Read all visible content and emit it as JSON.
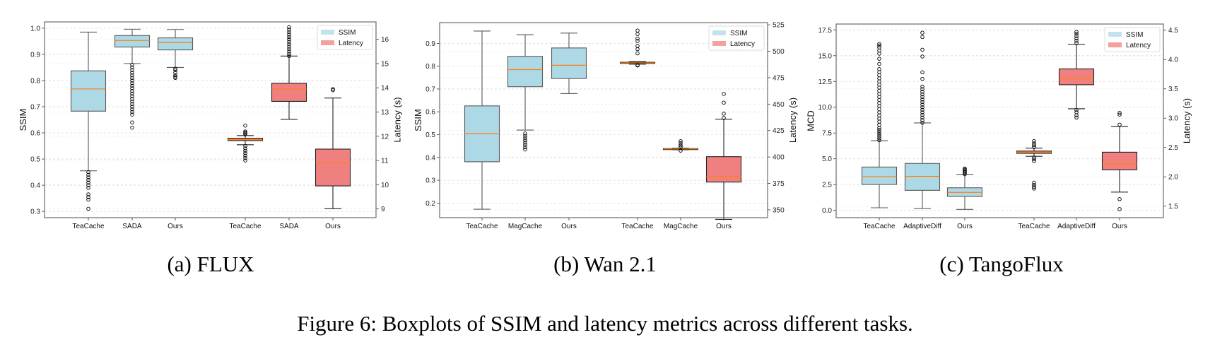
{
  "colors": {
    "ssim_box": "#add8e6",
    "latency_box": "#f08080",
    "median": "#ff7f0e",
    "grid": "#d9d9d9"
  },
  "legend": {
    "placement": "top-right",
    "entries": [
      "SSIM",
      "Latency"
    ]
  },
  "subcaptions": [
    "(a) FLUX",
    "(b) Wan 2.1",
    "(c) TangoFlux"
  ],
  "figure_caption": "Figure 6: Boxplots of SSIM and latency metrics across different tasks.",
  "chart_data": [
    {
      "type": "boxplot",
      "categories": [
        "TeaCache",
        "SADA",
        "Ours",
        "TeaCache",
        "SADA",
        "Ours"
      ],
      "ylabel": "SSIM",
      "y2label": "Latency (s)",
      "ylim": [
        0.276,
        1.024
      ],
      "y2lim": [
        8.64,
        16.72
      ],
      "yticks": [
        "0.3",
        "0.4",
        "0.5",
        "0.6",
        "0.7",
        "0.8",
        "0.9",
        "1.0"
      ],
      "y2ticks": [
        "9",
        "10",
        "11",
        "12",
        "13",
        "14",
        "15",
        "16"
      ],
      "grid": true,
      "left_series": [
        {
          "whislo": 0.455,
          "q1": 0.683,
          "med": 0.768,
          "q3": 0.837,
          "whishi": 0.985,
          "fliers": [
            0.31,
            0.345,
            0.355,
            0.365,
            0.39,
            0.4,
            0.41,
            0.42,
            0.43,
            0.44,
            0.45
          ]
        },
        {
          "whislo": 0.865,
          "q1": 0.928,
          "med": 0.953,
          "q3": 0.972,
          "whishi": 0.996,
          "fliers": [
            0.62,
            0.64,
            0.67,
            0.68,
            0.69,
            0.7,
            0.71,
            0.72,
            0.73,
            0.74,
            0.75,
            0.76,
            0.77,
            0.78,
            0.79,
            0.8,
            0.81,
            0.82,
            0.83,
            0.84,
            0.85,
            0.86
          ]
        },
        {
          "whislo": 0.85,
          "q1": 0.917,
          "med": 0.945,
          "q3": 0.963,
          "whishi": 0.995,
          "fliers": [
            0.81,
            0.815,
            0.82,
            0.83,
            0.84,
            0.845
          ]
        }
      ],
      "right_series": [
        {
          "whislo": 11.65,
          "q1": 11.82,
          "med": 11.86,
          "q3": 11.92,
          "whishi": 12.03,
          "fliers": [
            11.0,
            11.1,
            11.2,
            11.3,
            11.4,
            11.5,
            11.6,
            12.08,
            12.12,
            12.16,
            12.2,
            12.44
          ]
        },
        {
          "whislo": 12.7,
          "q1": 13.44,
          "med": 13.95,
          "q3": 14.19,
          "whishi": 15.31,
          "fliers": [
            15.31,
            15.4,
            15.5,
            15.6,
            15.7,
            15.8,
            15.9,
            16.0,
            16.1,
            16.2,
            16.3,
            16.4,
            16.5
          ]
        },
        {
          "whislo": 9.01,
          "q1": 9.95,
          "med": 10.91,
          "q3": 11.47,
          "whishi": 13.58,
          "fliers": [
            13.9,
            13.95
          ]
        }
      ]
    },
    {
      "type": "boxplot",
      "categories": [
        "TeaCache",
        "MagCache",
        "Ours",
        "TeaCache",
        "MagCache",
        "Ours"
      ],
      "ylabel": "SSIM",
      "y2label": "Latency (s)",
      "ylim": [
        0.136,
        0.991
      ],
      "y2lim": [
        342.6,
        527.1
      ],
      "yticks": [
        "0.2",
        "0.3",
        "0.4",
        "0.5",
        "0.6",
        "0.7",
        "0.8",
        "0.9"
      ],
      "y2ticks": [
        "350",
        "375",
        "400",
        "425",
        "450",
        "475",
        "500",
        "525"
      ],
      "grid": true,
      "left_series": [
        {
          "whislo": 0.173,
          "q1": 0.381,
          "med": 0.505,
          "q3": 0.626,
          "whishi": 0.954,
          "fliers": []
        },
        {
          "whislo": 0.52,
          "q1": 0.71,
          "med": 0.785,
          "q3": 0.843,
          "whishi": 0.938,
          "fliers": [
            0.435,
            0.445,
            0.455,
            0.465,
            0.475,
            0.485,
            0.495,
            0.505
          ]
        },
        {
          "whislo": 0.68,
          "q1": 0.746,
          "med": 0.804,
          "q3": 0.88,
          "whishi": 0.945,
          "fliers": []
        }
      ],
      "right_series": [
        {
          "whislo": 487.8,
          "q1": 488.5,
          "med": 489.0,
          "q3": 489.6,
          "whishi": 490.2,
          "fliers": [
            486.5,
            487.0,
            498,
            502,
            505,
            509.7,
            512,
            516.3,
            519.6
          ]
        },
        {
          "whislo": 406.9,
          "q1": 407.2,
          "med": 407.6,
          "q3": 408.0,
          "whishi": 408.3,
          "fliers": [
            406.0,
            409.5,
            411,
            413,
            415
          ]
        },
        {
          "whislo": 341,
          "q1": 376.3,
          "med": 381.5,
          "q3": 400.3,
          "whishi": 435.8,
          "fliers": [
            437,
            441,
            451.4,
            459.6
          ]
        }
      ]
    },
    {
      "type": "boxplot",
      "categories": [
        "TeaCache",
        "AdaptiveDiff",
        "Ours",
        "TeaCache",
        "AdaptiveDiff",
        "Ours"
      ],
      "ylabel": "MCD",
      "y2label": "Latency (s)",
      "ylim": [
        -0.71,
        18.07
      ],
      "y2lim": [
        1.304,
        4.605
      ],
      "yticks": [
        "0.0",
        "2.5",
        "5.0",
        "7.5",
        "10.0",
        "12.5",
        "15.0",
        "17.5"
      ],
      "y2ticks": [
        "1.5",
        "2.0",
        "2.5",
        "3.0",
        "3.5",
        "4.0",
        "4.5"
      ],
      "grid": true,
      "left_series": [
        {
          "whislo": 0.25,
          "q1": 2.51,
          "med": 3.27,
          "q3": 4.2,
          "whishi": 6.76,
          "fliers": [
            6.8,
            7.0,
            7.2,
            7.4,
            7.6,
            7.8,
            8.0,
            8.3,
            8.6,
            8.9,
            9.2,
            9.5,
            9.8,
            10.1,
            10.4,
            10.7,
            11.0,
            11.3,
            11.6,
            11.9,
            12.2,
            12.5,
            12.8,
            13.1,
            13.4,
            13.7,
            14.2,
            14.7,
            15.2,
            15.5,
            15.8,
            16.0,
            16.15
          ]
        },
        {
          "whislo": 0.18,
          "q1": 1.94,
          "med": 3.29,
          "q3": 4.55,
          "whishi": 8.48,
          "fliers": [
            8.5,
            8.75,
            9.0,
            9.25,
            9.5,
            9.75,
            10.0,
            10.25,
            10.5,
            10.75,
            11.0,
            11.25,
            11.5,
            11.75,
            12.0,
            12.75,
            13.39,
            14.92,
            15.58,
            16.81,
            17.23
          ]
        },
        {
          "whislo": 0.09,
          "q1": 1.35,
          "med": 1.74,
          "q3": 2.19,
          "whishi": 3.49,
          "fliers": [
            3.5,
            3.6,
            3.7,
            3.8,
            3.9,
            4.0,
            4.05
          ]
        }
      ],
      "right_series": [
        {
          "whislo": 2.35,
          "q1": 2.4,
          "med": 2.42,
          "q3": 2.44,
          "whishi": 2.49,
          "fliers": [
            1.8,
            1.83,
            1.86,
            1.9,
            2.27,
            2.3,
            2.33,
            2.51,
            2.54,
            2.57,
            2.61
          ]
        },
        {
          "whislo": 3.16,
          "q1": 3.57,
          "med": 3.68,
          "q3": 3.84,
          "whishi": 4.26,
          "fliers": [
            3.01,
            3.05,
            3.1,
            3.14,
            4.28,
            4.32,
            4.36,
            4.4,
            4.44,
            4.47
          ]
        },
        {
          "whislo": 1.74,
          "q1": 2.12,
          "med": 2.22,
          "q3": 2.42,
          "whishi": 2.86,
          "fliers": [
            1.45,
            1.62,
            2.89,
            3.06,
            3.09
          ]
        }
      ]
    }
  ]
}
